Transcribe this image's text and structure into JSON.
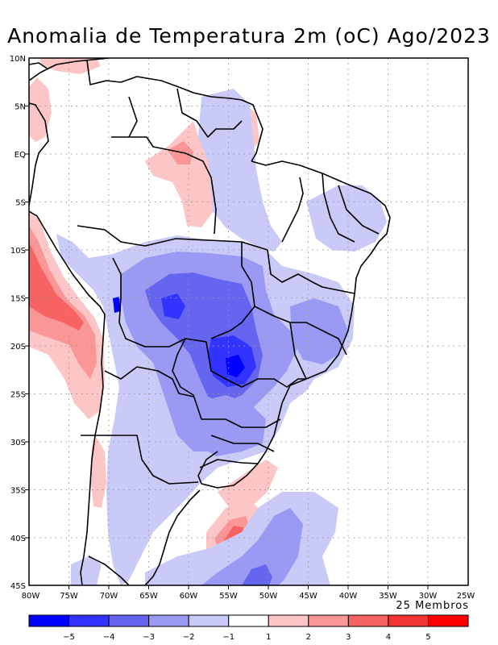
{
  "title": "Anomalia de Temperatura 2m (oC) Ago/2023",
  "members_label": "25 Membros",
  "axes": {
    "lat_ticks": [
      "10N",
      "5N",
      "EQ",
      "5S",
      "10S",
      "15S",
      "20S",
      "25S",
      "30S",
      "35S",
      "40S",
      "45S"
    ],
    "lon_ticks": [
      "80W",
      "75W",
      "70W",
      "65W",
      "60W",
      "55W",
      "50W",
      "45W",
      "40W",
      "35W",
      "30W",
      "25W"
    ],
    "lon_range": [
      -80,
      -25
    ],
    "lat_range": [
      -45,
      10
    ],
    "grid": true
  },
  "colorbar": {
    "labels": [
      "-5",
      "-4",
      "-3",
      "-2",
      "-1",
      "1",
      "2",
      "3",
      "4",
      "5"
    ],
    "colors": [
      "#0000ff",
      "#3333ff",
      "#6565f0",
      "#9a9af5",
      "#cacaf8",
      "#ffffff",
      "#fcc6c6",
      "#fa9696",
      "#f76262",
      "#f53535",
      "#ff0000"
    ]
  },
  "anomaly_regions": {
    "cold": [
      "central-brazil",
      "south-brazil",
      "northeast-brazil",
      "amazon-east",
      "patagonia-south",
      "south-atlantic"
    ],
    "warm": [
      "peru-chile-coast",
      "north-amazon",
      "uruguay-coast",
      "south-atlantic-east"
    ]
  }
}
